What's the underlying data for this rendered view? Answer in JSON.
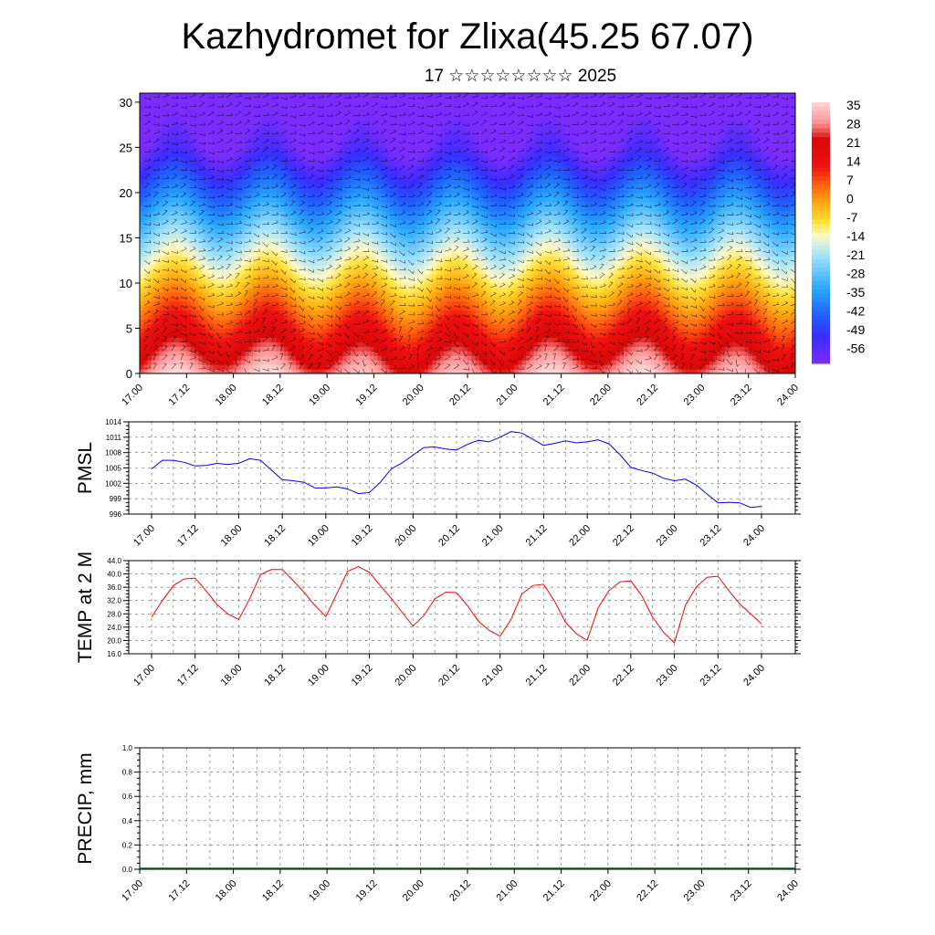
{
  "title": "Kazhydromet for Zlixa(45.25 67.07)",
  "subtitle": "17 ☆☆☆☆☆☆☆☆ 2025",
  "time_labels": [
    "17.00",
    "17.12",
    "18.00",
    "18.12",
    "19.00",
    "19.12",
    "20.00",
    "20.12",
    "21.00",
    "21.12",
    "22.00",
    "22.12",
    "23.00",
    "23.12",
    "24.00"
  ],
  "chart_data": [
    {
      "type": "heatmap",
      "name_id": "temperature-cross-section",
      "ylim": [
        0,
        31
      ],
      "yticks": [
        0,
        5,
        10,
        15,
        20,
        25,
        30
      ],
      "colorbar": {
        "labels": [
          "35",
          "28",
          "21",
          "14",
          "7",
          "0",
          "-7",
          "-14",
          "-21",
          "-28",
          "-35",
          "-42",
          "-49",
          "-56"
        ],
        "range": [
          -60,
          38
        ],
        "colors": [
          "#7a2cff",
          "#3a2cff",
          "#1f60ff",
          "#2aa8ff",
          "#9ee2ff",
          "#fff8c8",
          "#ffe23a",
          "#ffaa10",
          "#ff6010",
          "#ee1010",
          "#d80808",
          "#ff9090",
          "#ffd8d8"
        ],
        "stops": [
          -60,
          -50,
          -42,
          -32,
          -20,
          -12,
          -7,
          0,
          7,
          14,
          24,
          30,
          38
        ]
      },
      "overlay": "wind-barbs"
    },
    {
      "type": "line",
      "ylabel": "PMSL",
      "ylim": [
        996,
        1014
      ],
      "yticks": [
        996,
        999,
        1002,
        1005,
        1008,
        1011,
        1014
      ],
      "color": "#0000ff",
      "x_hours": [
        0,
        3,
        6,
        9,
        12,
        15,
        18,
        21,
        24,
        27,
        30,
        33,
        36,
        39,
        42,
        45,
        48,
        51,
        54,
        57,
        60,
        63,
        66,
        69,
        72,
        75,
        78,
        81,
        84,
        87,
        90,
        93,
        96,
        99,
        102,
        105,
        108,
        111,
        114,
        117,
        120,
        123,
        126,
        129,
        132,
        135,
        138,
        141,
        144,
        147,
        150,
        153,
        156,
        159,
        162,
        165,
        168
      ],
      "values": [
        1004.8,
        1006.5,
        1006.5,
        1006.1,
        1005.4,
        1005.5,
        1005.9,
        1005.7,
        1005.9,
        1006.8,
        1006.5,
        1004.6,
        1002.7,
        1002.5,
        1002.2,
        1001.1,
        1001.1,
        1001.3,
        1000.9,
        1000.0,
        1000.2,
        1002.2,
        1004.8,
        1006.0,
        1007.5,
        1009.0,
        1009.1,
        1008.7,
        1008.5,
        1009.6,
        1010.4,
        1010.1,
        1011.0,
        1012.1,
        1011.8,
        1010.6,
        1009.4,
        1009.8,
        1010.3,
        1009.9,
        1010.1,
        1010.5,
        1009.7,
        1007.6,
        1005.1,
        1004.5,
        1004.0,
        1003.0,
        1002.5,
        1002.8,
        1001.7,
        999.9,
        998.2,
        998.3,
        998.2,
        997.3,
        997.5
      ]
    },
    {
      "type": "line",
      "ylabel": "TEMP at 2 M",
      "ylim": [
        16,
        44
      ],
      "yticks": [
        "16.0",
        "20.0",
        "24.0",
        "28.0",
        "32.0",
        "36.0",
        "40.0",
        "44.0"
      ],
      "color": "#ff0000",
      "x_hours": [
        0,
        3,
        6,
        9,
        12,
        15,
        18,
        21,
        24,
        27,
        30,
        33,
        36,
        39,
        42,
        45,
        48,
        51,
        54,
        57,
        60,
        63,
        66,
        69,
        72,
        75,
        78,
        81,
        84,
        87,
        90,
        93,
        96,
        99,
        102,
        105,
        108,
        111,
        114,
        117,
        120,
        123,
        126,
        129,
        132,
        135,
        138,
        141,
        144,
        147,
        150,
        153,
        156,
        159,
        162,
        165,
        168
      ],
      "values": [
        27.0,
        32.0,
        36.5,
        38.5,
        38.7,
        35.0,
        30.8,
        28.0,
        26.3,
        32.5,
        39.8,
        41.3,
        41.3,
        38.0,
        34.5,
        30.5,
        27.2,
        34.0,
        40.8,
        42.2,
        40.5,
        36.5,
        32.7,
        28.5,
        24.3,
        27.5,
        32.5,
        34.5,
        34.4,
        30.5,
        25.8,
        23.0,
        21.3,
        26.3,
        34.0,
        36.5,
        36.9,
        31.8,
        25.5,
        22.0,
        20.0,
        29.8,
        35.0,
        37.6,
        37.9,
        33.5,
        27.0,
        22.5,
        19.3,
        30.5,
        36.0,
        39.0,
        39.3,
        35.0,
        31.0,
        28.0,
        25.0
      ]
    },
    {
      "type": "bar",
      "ylabel": "PRECIP, mm",
      "ylim": [
        0,
        1
      ],
      "yticks": [
        "0.0",
        "0.2",
        "0.4",
        "0.6",
        "0.8",
        "1.0"
      ],
      "values": []
    }
  ]
}
